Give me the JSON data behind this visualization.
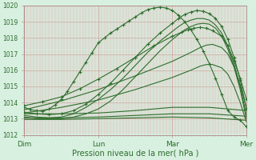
{
  "background_color": "#d8f0e0",
  "grid_color_minor": "#e8b8b8",
  "grid_color_major": "#d08080",
  "line_color": "#2d6e2d",
  "xlabel": "Pression niveau de la mer( hPa )",
  "ylim": [
    1012,
    1020
  ],
  "yticks": [
    1012,
    1013,
    1014,
    1015,
    1016,
    1017,
    1018,
    1019,
    1020
  ],
  "xtick_labels": [
    "Dim",
    "Lun",
    "Mar",
    "Mer"
  ],
  "xtick_positions": [
    0,
    48,
    96,
    144
  ],
  "lines": [
    {
      "points": [
        [
          0,
          1013.7
        ],
        [
          4,
          1013.55
        ],
        [
          8,
          1013.5
        ],
        [
          12,
          1013.45
        ],
        [
          16,
          1013.6
        ],
        [
          20,
          1013.85
        ],
        [
          24,
          1014.2
        ],
        [
          28,
          1014.7
        ],
        [
          32,
          1015.3
        ],
        [
          36,
          1015.9
        ],
        [
          40,
          1016.5
        ],
        [
          44,
          1017.1
        ],
        [
          48,
          1017.7
        ],
        [
          52,
          1018.0
        ],
        [
          56,
          1018.3
        ],
        [
          60,
          1018.55
        ],
        [
          64,
          1018.8
        ],
        [
          68,
          1019.05
        ],
        [
          72,
          1019.3
        ],
        [
          76,
          1019.55
        ],
        [
          80,
          1019.75
        ],
        [
          84,
          1019.85
        ],
        [
          88,
          1019.9
        ],
        [
          92,
          1019.85
        ],
        [
          96,
          1019.7
        ],
        [
          100,
          1019.4
        ],
        [
          104,
          1019.0
        ],
        [
          108,
          1018.5
        ],
        [
          112,
          1017.9
        ],
        [
          116,
          1017.2
        ],
        [
          120,
          1016.4
        ],
        [
          124,
          1015.5
        ],
        [
          128,
          1014.5
        ],
        [
          132,
          1013.5
        ],
        [
          136,
          1013.1
        ],
        [
          140,
          1012.9
        ],
        [
          144,
          1012.5
        ]
      ],
      "with_markers": true
    },
    {
      "points": [
        [
          0,
          1013.2
        ],
        [
          8,
          1013.1
        ],
        [
          16,
          1013.05
        ],
        [
          24,
          1013.1
        ],
        [
          32,
          1013.3
        ],
        [
          40,
          1013.7
        ],
        [
          48,
          1014.2
        ],
        [
          56,
          1014.8
        ],
        [
          64,
          1015.5
        ],
        [
          72,
          1016.3
        ],
        [
          80,
          1017.1
        ],
        [
          88,
          1017.8
        ],
        [
          96,
          1018.4
        ],
        [
          100,
          1018.7
        ],
        [
          104,
          1018.95
        ],
        [
          108,
          1019.1
        ],
        [
          112,
          1019.2
        ],
        [
          116,
          1019.2
        ],
        [
          120,
          1019.1
        ],
        [
          124,
          1018.8
        ],
        [
          128,
          1018.3
        ],
        [
          132,
          1017.5
        ],
        [
          136,
          1016.4
        ],
        [
          140,
          1015.0
        ],
        [
          144,
          1013.2
        ]
      ],
      "with_markers": false
    },
    {
      "points": [
        [
          0,
          1013.1
        ],
        [
          8,
          1013.0
        ],
        [
          16,
          1013.0
        ],
        [
          24,
          1013.0
        ],
        [
          32,
          1013.1
        ],
        [
          40,
          1013.3
        ],
        [
          48,
          1013.6
        ],
        [
          56,
          1014.1
        ],
        [
          64,
          1014.8
        ],
        [
          72,
          1015.6
        ],
        [
          80,
          1016.4
        ],
        [
          88,
          1017.2
        ],
        [
          96,
          1017.9
        ],
        [
          100,
          1018.2
        ],
        [
          104,
          1018.5
        ],
        [
          108,
          1018.7
        ],
        [
          112,
          1018.85
        ],
        [
          116,
          1018.9
        ],
        [
          120,
          1018.85
        ],
        [
          124,
          1018.6
        ],
        [
          128,
          1018.1
        ],
        [
          132,
          1017.3
        ],
        [
          136,
          1016.2
        ],
        [
          140,
          1014.8
        ],
        [
          144,
          1013.0
        ]
      ],
      "with_markers": false
    },
    {
      "points": [
        [
          0,
          1013.4
        ],
        [
          8,
          1013.3
        ],
        [
          16,
          1013.25
        ],
        [
          24,
          1013.3
        ],
        [
          32,
          1013.5
        ],
        [
          40,
          1013.9
        ],
        [
          48,
          1014.5
        ],
        [
          56,
          1015.2
        ],
        [
          64,
          1016.0
        ],
        [
          72,
          1016.8
        ],
        [
          80,
          1017.6
        ],
        [
          88,
          1018.3
        ],
        [
          96,
          1018.9
        ],
        [
          100,
          1019.2
        ],
        [
          104,
          1019.45
        ],
        [
          108,
          1019.6
        ],
        [
          112,
          1019.7
        ],
        [
          116,
          1019.65
        ],
        [
          120,
          1019.5
        ],
        [
          124,
          1019.2
        ],
        [
          128,
          1018.7
        ],
        [
          132,
          1017.9
        ],
        [
          136,
          1016.8
        ],
        [
          140,
          1015.4
        ],
        [
          144,
          1013.6
        ]
      ],
      "with_markers": true
    },
    {
      "points": [
        [
          0,
          1013.3
        ],
        [
          24,
          1013.3
        ],
        [
          48,
          1013.35
        ],
        [
          72,
          1013.5
        ],
        [
          96,
          1013.7
        ],
        [
          120,
          1013.7
        ],
        [
          144,
          1013.5
        ]
      ],
      "with_markers": false
    },
    {
      "points": [
        [
          0,
          1013.05
        ],
        [
          24,
          1013.05
        ],
        [
          48,
          1013.1
        ],
        [
          72,
          1013.2
        ],
        [
          96,
          1013.3
        ],
        [
          120,
          1013.3
        ],
        [
          144,
          1013.15
        ]
      ],
      "with_markers": false
    },
    {
      "points": [
        [
          0,
          1012.95
        ],
        [
          24,
          1012.95
        ],
        [
          48,
          1013.0
        ],
        [
          72,
          1013.05
        ],
        [
          96,
          1013.1
        ],
        [
          120,
          1013.05
        ],
        [
          144,
          1012.9
        ]
      ],
      "with_markers": false
    },
    {
      "points": [
        [
          0,
          1013.8
        ],
        [
          12,
          1014.05
        ],
        [
          24,
          1014.35
        ],
        [
          36,
          1014.85
        ],
        [
          48,
          1015.45
        ],
        [
          60,
          1016.1
        ],
        [
          72,
          1016.8
        ],
        [
          84,
          1017.5
        ],
        [
          96,
          1018.1
        ],
        [
          102,
          1018.35
        ],
        [
          106,
          1018.5
        ],
        [
          110,
          1018.6
        ],
        [
          114,
          1018.65
        ],
        [
          118,
          1018.6
        ],
        [
          122,
          1018.45
        ],
        [
          128,
          1018.1
        ],
        [
          132,
          1017.5
        ],
        [
          136,
          1016.6
        ],
        [
          140,
          1015.5
        ],
        [
          144,
          1014.2
        ]
      ],
      "with_markers": true
    },
    {
      "points": [
        [
          0,
          1013.55
        ],
        [
          24,
          1014.1
        ],
        [
          48,
          1014.8
        ],
        [
          72,
          1015.65
        ],
        [
          96,
          1016.55
        ],
        [
          108,
          1017.1
        ],
        [
          114,
          1017.4
        ],
        [
          118,
          1017.55
        ],
        [
          122,
          1017.6
        ],
        [
          128,
          1017.4
        ],
        [
          132,
          1017.0
        ],
        [
          136,
          1016.2
        ],
        [
          140,
          1015.1
        ],
        [
          144,
          1013.7
        ]
      ],
      "with_markers": false
    },
    {
      "points": [
        [
          0,
          1013.35
        ],
        [
          24,
          1013.7
        ],
        [
          48,
          1014.15
        ],
        [
          72,
          1014.8
        ],
        [
          96,
          1015.55
        ],
        [
          108,
          1016.0
        ],
        [
          114,
          1016.25
        ],
        [
          118,
          1016.35
        ],
        [
          122,
          1016.35
        ],
        [
          128,
          1016.15
        ],
        [
          132,
          1015.75
        ],
        [
          136,
          1015.0
        ],
        [
          140,
          1014.0
        ],
        [
          144,
          1012.8
        ]
      ],
      "with_markers": false
    }
  ]
}
